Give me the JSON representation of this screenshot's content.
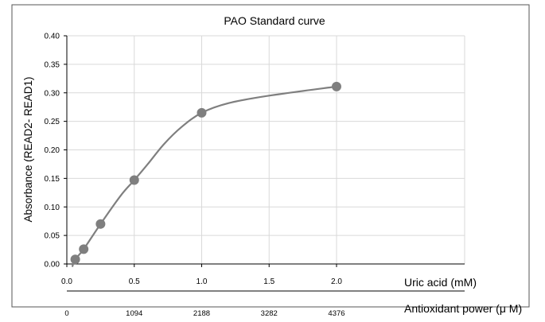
{
  "chart_data": {
    "type": "scatter",
    "title": "PAO Standard curve",
    "ylabel": "Absorbance (READ2- READ1)",
    "xlabel": "Uric acid (mM)",
    "secondary_x_label": "Antioxidant power (μ M)",
    "xlim": [
      0.0,
      2.95
    ],
    "ylim": [
      0.0,
      0.4
    ],
    "x_ticks": [
      "0.0",
      "0.5",
      "1.0",
      "1.5",
      "2.0"
    ],
    "x_tick_values": [
      0.0,
      0.5,
      1.0,
      1.5,
      2.0
    ],
    "y_ticks": [
      "0.00",
      "0.05",
      "0.10",
      "0.15",
      "0.20",
      "0.25",
      "0.30",
      "0.35",
      "0.40"
    ],
    "y_tick_values": [
      0.0,
      0.05,
      0.1,
      0.15,
      0.2,
      0.25,
      0.3,
      0.35,
      0.4
    ],
    "secondary_x_ticks": [
      "0",
      "1094",
      "2188",
      "3282",
      "4376"
    ],
    "grid": true,
    "legend": "none",
    "colors": {
      "marker": "#7f7f7f",
      "line": "#7f7f7f",
      "grid": "#d9d9d9",
      "axis": "#000000"
    },
    "series": [
      {
        "x": [
          0.0625,
          0.125,
          0.25,
          0.5,
          1.0,
          2.0
        ],
        "y": [
          0.008,
          0.026,
          0.07,
          0.147,
          0.265,
          0.311
        ]
      }
    ],
    "fit_curve": {
      "x": [
        0.04,
        0.0625,
        0.125,
        0.25,
        0.4,
        0.5,
        0.6,
        0.72,
        0.85,
        1.0,
        1.2,
        1.5,
        2.0
      ],
      "y": [
        -0.005,
        0.008,
        0.026,
        0.07,
        0.12,
        0.147,
        0.175,
        0.21,
        0.24,
        0.265,
        0.282,
        0.295,
        0.311
      ]
    }
  }
}
